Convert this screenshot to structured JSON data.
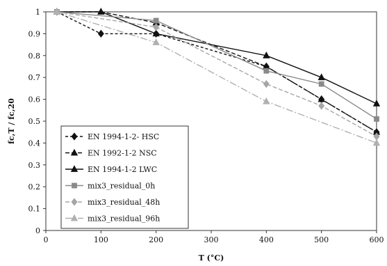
{
  "chart_data": {
    "type": "line",
    "title": "",
    "xlabel": "T (°C)",
    "ylabel": "fc,T / fc,20",
    "xlim": [
      0,
      600
    ],
    "ylim": [
      0,
      1
    ],
    "xticks": [
      0,
      100,
      200,
      300,
      400,
      500,
      600
    ],
    "yticks": [
      0,
      0.1,
      0.2,
      0.3,
      0.4,
      0.5,
      0.6,
      0.7,
      0.8,
      0.9,
      1
    ],
    "grid": false,
    "legend_position": "bottom-left",
    "series": [
      {
        "name": "EN 1994-1-2- HSC",
        "x": [
          20,
          100,
          200,
          400,
          500,
          600
        ],
        "y": [
          1.0,
          0.9,
          0.9,
          0.75,
          0.6,
          0.45
        ],
        "color": "#111111",
        "marker": "diamond",
        "dash": "4,3"
      },
      {
        "name": "EN 1992-1-2 NSC",
        "x": [
          20,
          100,
          200,
          400,
          500,
          600
        ],
        "y": [
          1.0,
          1.0,
          0.95,
          0.75,
          0.6,
          0.45
        ],
        "color": "#111111",
        "marker": "triangle",
        "dash": "6,3"
      },
      {
        "name": "EN 1994-1-2 LWC",
        "x": [
          20,
          100,
          200,
          400,
          500,
          600
        ],
        "y": [
          1.0,
          1.0,
          0.9,
          0.8,
          0.7,
          0.58
        ],
        "color": "#111111",
        "marker": "triangle",
        "dash": ""
      },
      {
        "name": "mix3_residual_0h",
        "x": [
          20,
          200,
          400,
          500,
          600
        ],
        "y": [
          1.0,
          0.96,
          0.73,
          0.67,
          0.51
        ],
        "color": "#8a8a8a",
        "marker": "square",
        "dash": ""
      },
      {
        "name": "mix3_residual_48h",
        "x": [
          20,
          200,
          400,
          500,
          600
        ],
        "y": [
          1.0,
          0.93,
          0.67,
          0.57,
          0.43
        ],
        "color": "#a6a6a6",
        "marker": "diamond",
        "dash": "6,3"
      },
      {
        "name": "mix3_residual_96h",
        "x": [
          20,
          200,
          400,
          600
        ],
        "y": [
          1.0,
          0.86,
          0.59,
          0.4
        ],
        "color": "#b0b0b0",
        "marker": "triangle",
        "dash": "10,3,2,3"
      }
    ]
  }
}
